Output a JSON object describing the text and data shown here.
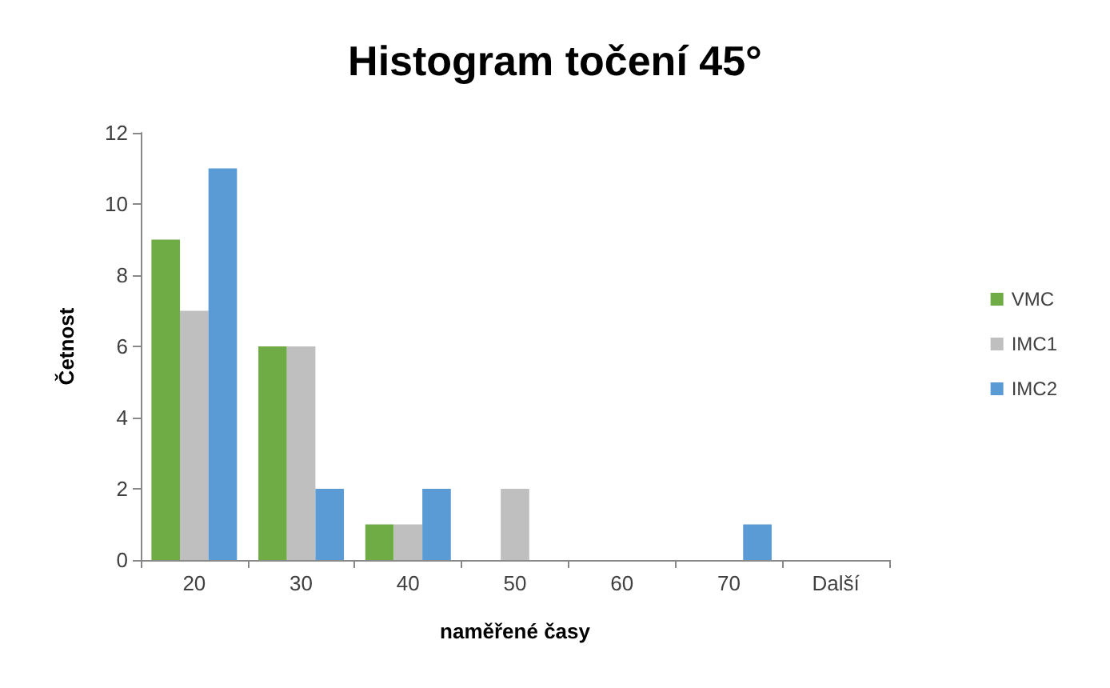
{
  "chart_data": {
    "type": "bar",
    "title": "Histogram točení 45°",
    "xlabel": "naměřené časy",
    "ylabel": "Četnost",
    "categories": [
      "20",
      "30",
      "40",
      "50",
      "60",
      "70",
      "Další"
    ],
    "series": [
      {
        "name": "VMC",
        "color": "#6fac46",
        "values": [
          9,
          6,
          1,
          0,
          0,
          0,
          0
        ]
      },
      {
        "name": "IMC1",
        "color": "#bfbfbf",
        "values": [
          7,
          6,
          1,
          2,
          0,
          0,
          0
        ]
      },
      {
        "name": "IMC2",
        "color": "#5b9bd5",
        "values": [
          11,
          2,
          2,
          0,
          0,
          1,
          0
        ]
      }
    ],
    "ylim": [
      0,
      12
    ],
    "yticks": [
      0,
      2,
      4,
      6,
      8,
      10,
      12
    ],
    "grid": false,
    "legend": "right"
  }
}
